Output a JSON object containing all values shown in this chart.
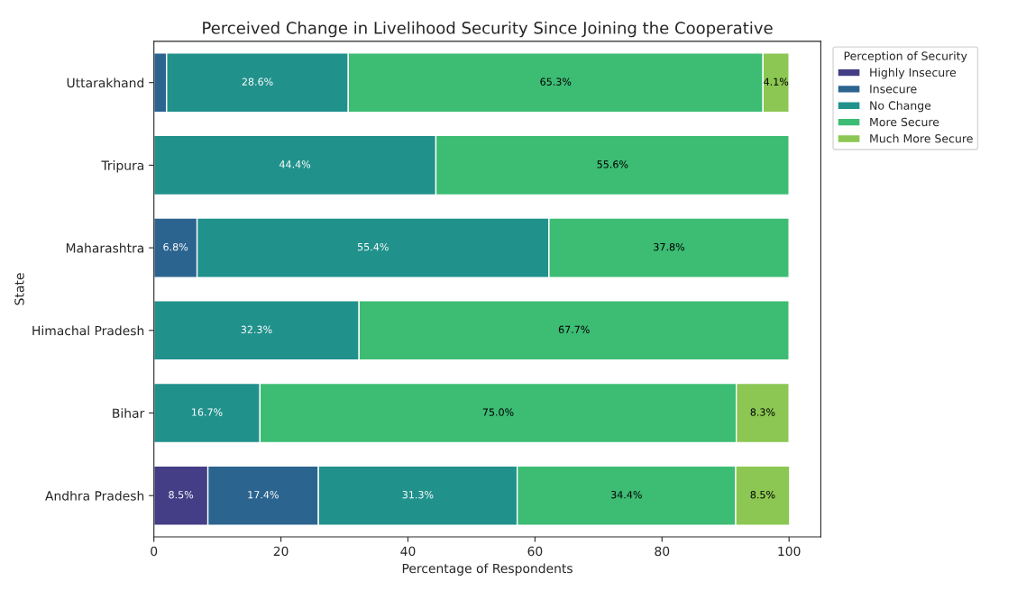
{
  "chart_data": {
    "type": "bar",
    "orientation": "horizontal",
    "stacked": true,
    "title": "Perceived Change in Livelihood Security Since Joining the Cooperative",
    "xlabel": "Percentage of Respondents",
    "ylabel": "State",
    "legend_title": "Perception of Security",
    "categories": [
      "Uttarakhand",
      "Tripura",
      "Maharashtra",
      "Himachal Pradesh",
      "Bihar",
      "Andhra Pradesh"
    ],
    "series": [
      {
        "name": "Highly Insecure",
        "color": "#433e85",
        "values": [
          null,
          null,
          null,
          null,
          null,
          8.5
        ],
        "value_labels": [
          null,
          null,
          null,
          null,
          null,
          "8.5%"
        ]
      },
      {
        "name": "Insecure",
        "color": "#2c6490",
        "values": [
          2.0,
          null,
          6.8,
          null,
          null,
          17.4
        ],
        "value_labels": [
          null,
          null,
          "6.8%",
          null,
          null,
          "17.4%"
        ]
      },
      {
        "name": "No Change",
        "color": "#21918c",
        "values": [
          28.6,
          44.4,
          55.4,
          32.3,
          16.7,
          31.3
        ],
        "value_labels": [
          "28.6%",
          "44.4%",
          "55.4%",
          "32.3%",
          "16.7%",
          "31.3%"
        ]
      },
      {
        "name": "More Secure",
        "color": "#3dbc74",
        "values": [
          65.3,
          55.6,
          37.8,
          67.7,
          75.0,
          34.4
        ],
        "value_labels": [
          "65.3%",
          "55.6%",
          "37.8%",
          "67.7%",
          "75.0%",
          "34.4%"
        ]
      },
      {
        "name": "Much More Secure",
        "color": "#8bc752",
        "values": [
          4.1,
          null,
          null,
          null,
          8.3,
          8.5
        ],
        "value_labels": [
          "4.1%",
          null,
          null,
          null,
          "8.3%",
          "8.5%"
        ]
      }
    ],
    "xlim": [
      0,
      105
    ],
    "xticks": [
      0,
      20,
      40,
      60,
      80,
      100
    ],
    "grid": false,
    "legend": "top right"
  }
}
